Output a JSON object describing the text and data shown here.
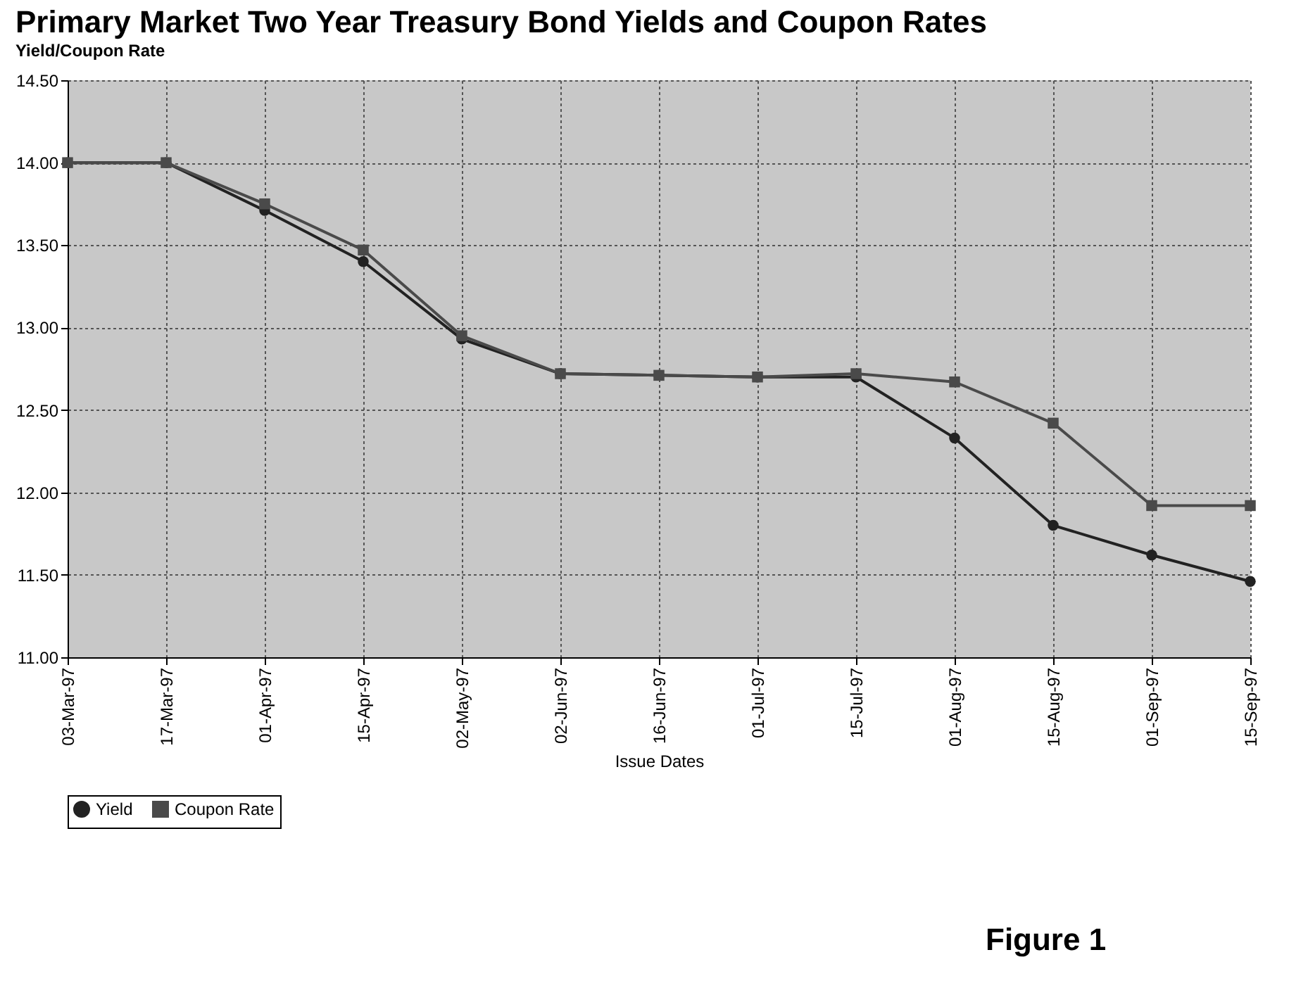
{
  "chart_data": {
    "type": "line",
    "title": "Primary Market Two Year Treasury Bond Yields and Coupon Rates",
    "xlabel": "Issue Dates",
    "ylabel": "Yield/Coupon Rate",
    "categories": [
      "03-Mar-97",
      "17-Mar-97",
      "01-Apr-97",
      "15-Apr-97",
      "02-May-97",
      "02-Jun-97",
      "16-Jun-97",
      "01-Jul-97",
      "15-Jul-97",
      "01-Aug-97",
      "15-Aug-97",
      "01-Sep-97",
      "15-Sep-97"
    ],
    "series": [
      {
        "name": "Yield",
        "color": "#222222",
        "marker": "circle",
        "values": [
          14.0,
          14.0,
          13.71,
          13.4,
          12.93,
          12.72,
          12.71,
          12.7,
          12.7,
          12.33,
          11.8,
          11.62,
          11.46
        ]
      },
      {
        "name": "Coupon Rate",
        "color": "#4a4a4a",
        "marker": "square",
        "values": [
          14.0,
          14.0,
          13.75,
          13.47,
          12.95,
          12.72,
          12.71,
          12.7,
          12.72,
          12.67,
          12.42,
          11.92,
          11.92
        ]
      }
    ],
    "ylim": [
      11,
      14.5
    ],
    "yticks": [
      {
        "value": 11,
        "label": "11.00"
      },
      {
        "value": 11.5,
        "label": "11.50"
      },
      {
        "value": 12,
        "label": "12.00"
      },
      {
        "value": 12.5,
        "label": "12.50"
      },
      {
        "value": 13,
        "label": "13.00"
      },
      {
        "value": 13.5,
        "label": "13.50"
      },
      {
        "value": 14,
        "label": "14.00"
      },
      {
        "value": 14.5,
        "label": "14.50"
      }
    ],
    "grid": true,
    "legend": "bottom",
    "line_style": "solid",
    "annotations": [
      "Figure 1"
    ]
  }
}
